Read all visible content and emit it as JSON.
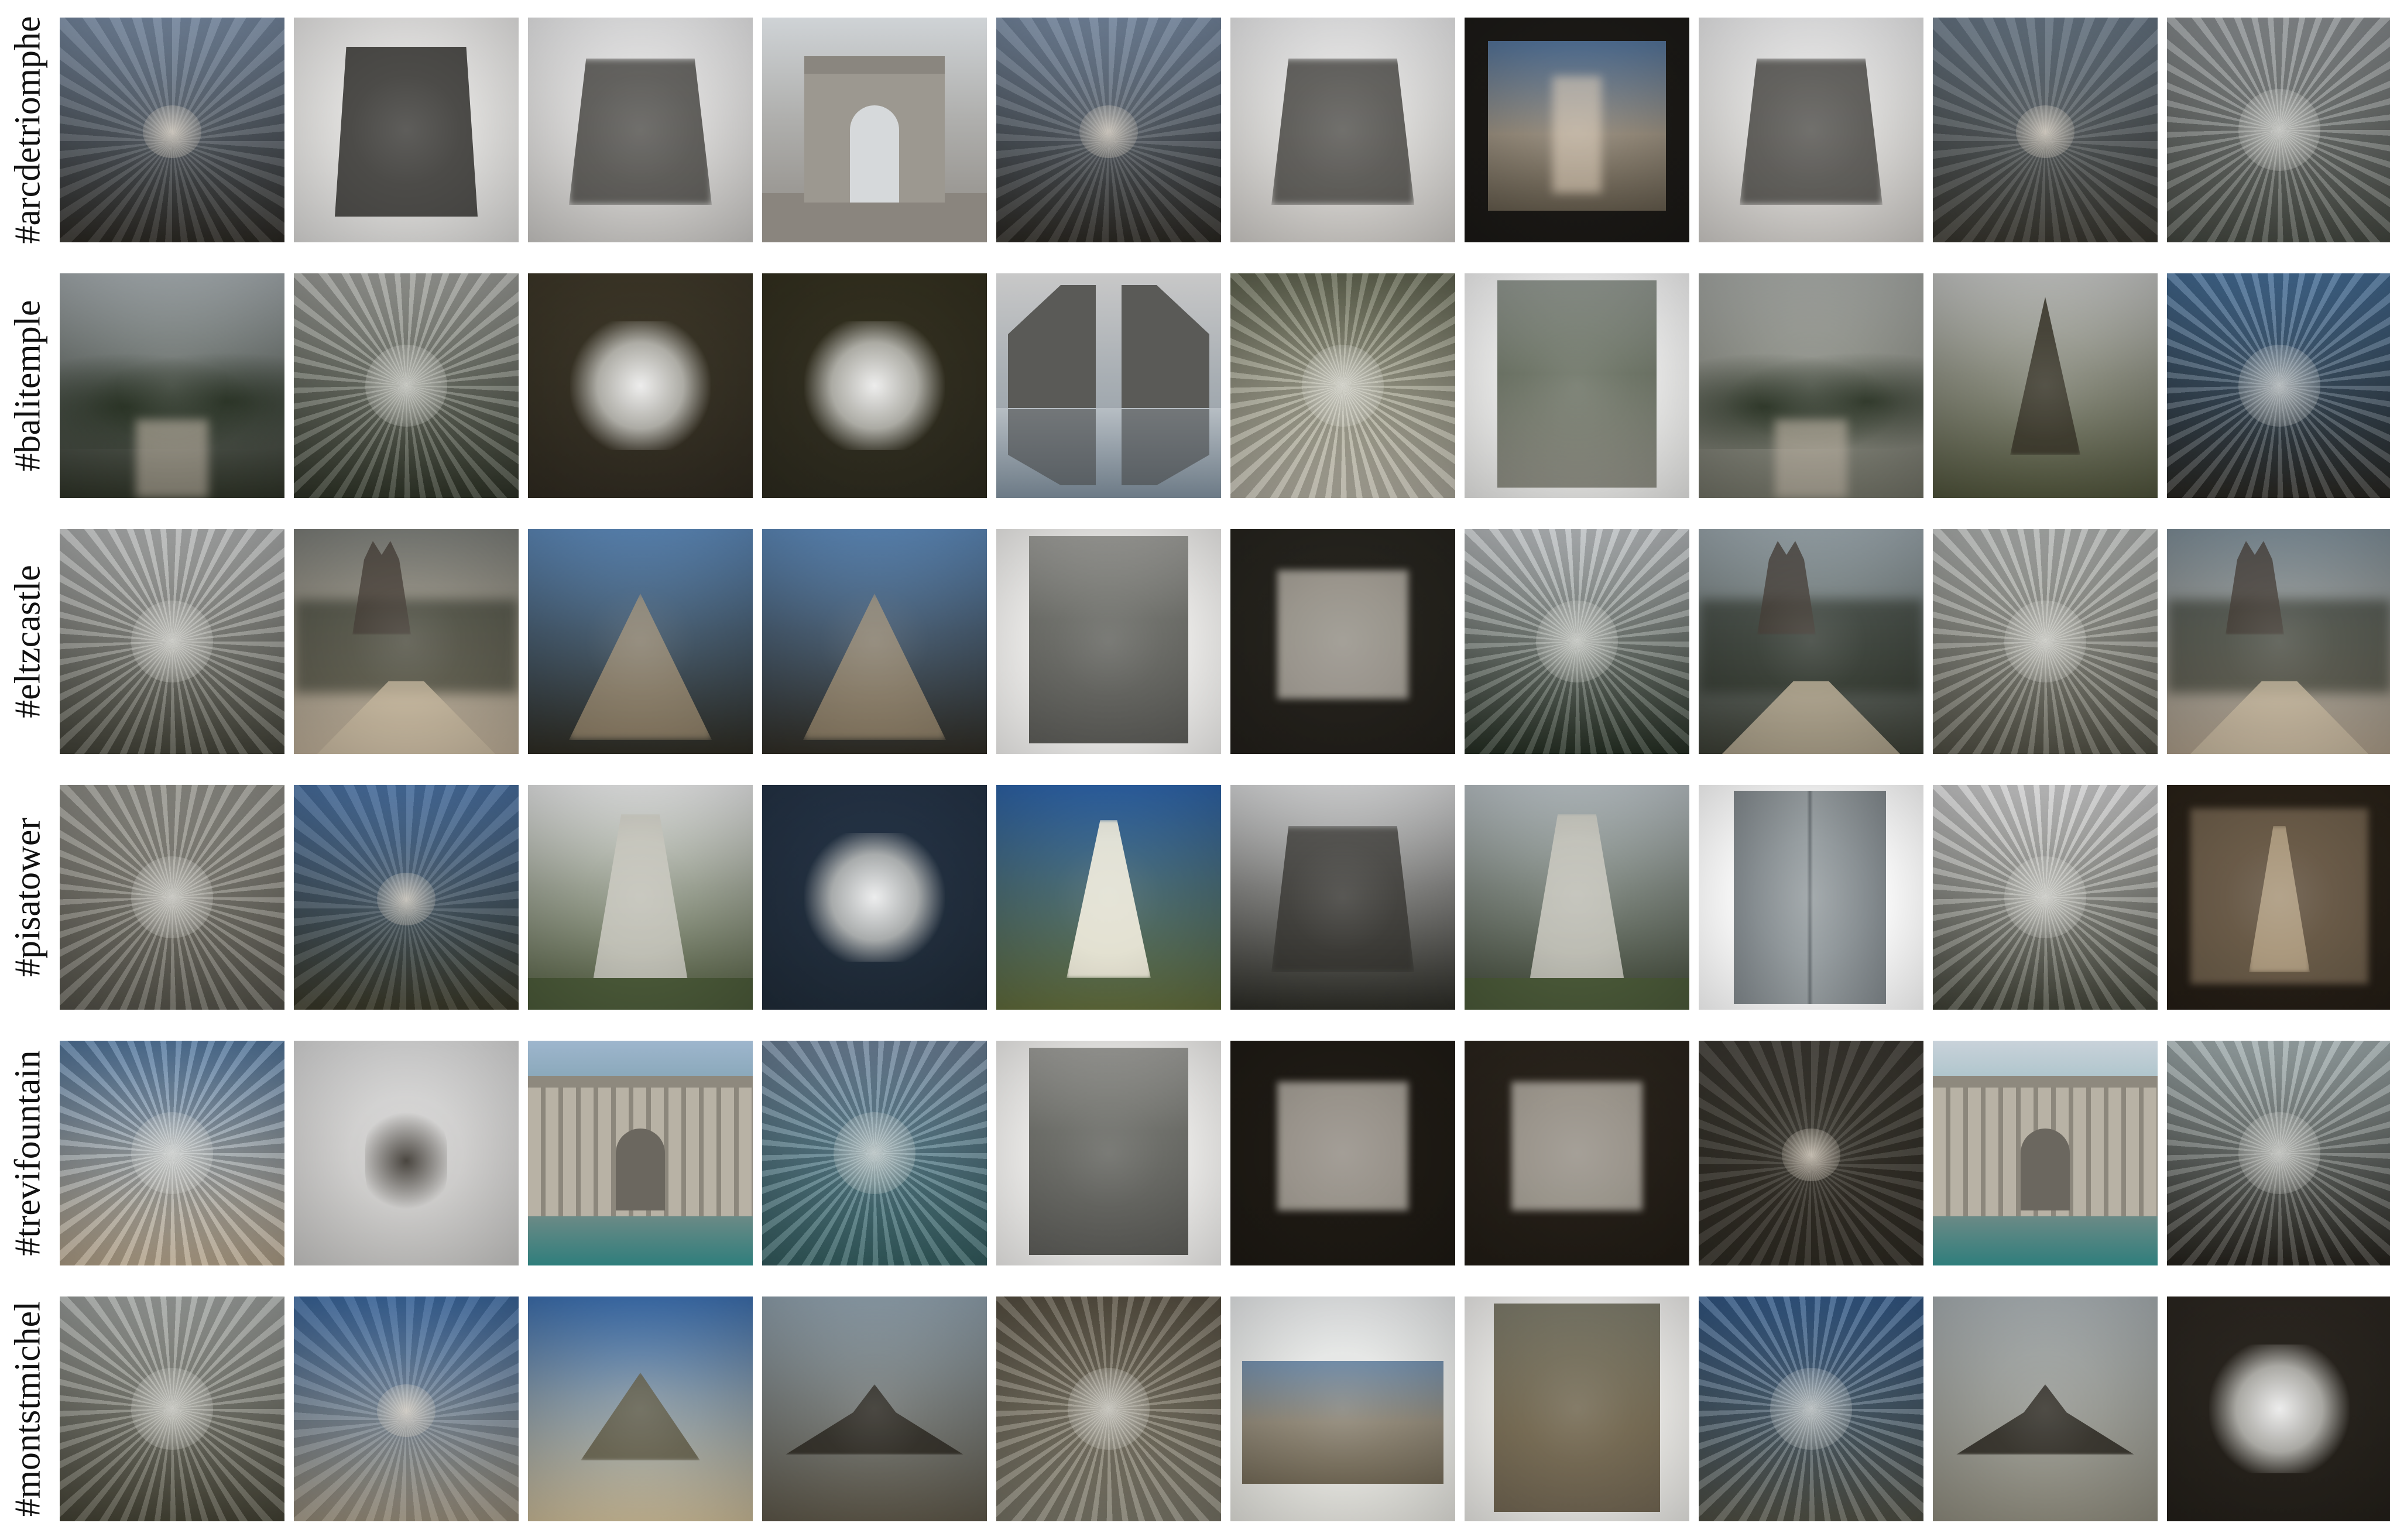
{
  "rows": [
    {
      "label": "#arcdetriomphe",
      "tiles": [
        {
          "top": "#7f93ad",
          "bottom": "#2d2a24",
          "shape": "streak"
        },
        {
          "top": "#e8e7e6",
          "bottom": "#d9d8d6",
          "shape": "trapezoid"
        },
        {
          "top": "#e9e9ea",
          "bottom": "#c8c6c3",
          "shape": "dark-block"
        },
        {
          "top": "#cfd3d6",
          "bottom": "#8e8a84",
          "shape": "arch"
        },
        {
          "top": "#7f93ad",
          "bottom": "#2d2a24",
          "shape": "streak"
        },
        {
          "top": "#ebebec",
          "bottom": "#cdcac6",
          "shape": "dark-block"
        },
        {
          "top": "#1c1a17",
          "bottom": "#1a1815",
          "shape": "framed"
        },
        {
          "top": "#ebebec",
          "bottom": "#cdcac6",
          "shape": "dark-block"
        },
        {
          "top": "#6f7f8f",
          "bottom": "#3a3830",
          "shape": "streak"
        },
        {
          "top": "#9ea3a6",
          "bottom": "#4d5149",
          "shape": "burst"
        }
      ]
    },
    {
      "label": "#balitemple",
      "tiles": [
        {
          "top": "#a3aaad",
          "bottom": "#2d3226",
          "shape": "trees"
        },
        {
          "top": "#b4b5b0",
          "bottom": "#343a2c",
          "shape": "burst"
        },
        {
          "top": "#3d3728",
          "bottom": "#2f2a20",
          "shape": "bright-center"
        },
        {
          "top": "#33301f",
          "bottom": "#2c2a1e",
          "shape": "bright-center"
        },
        {
          "top": "#c8c8c8",
          "bottom": "#8a96a0",
          "shape": "gate"
        },
        {
          "top": "#6f735c",
          "bottom": "#c7c3b4",
          "shape": "burst"
        },
        {
          "top": "#f4f4f4",
          "bottom": "#e6e6e4",
          "shape": "paper"
        },
        {
          "top": "#a5a8a4",
          "bottom": "#6e6f63",
          "shape": "trees"
        },
        {
          "top": "#c2c3c1",
          "bottom": "#4d5139",
          "shape": "tree-cone"
        },
        {
          "top": "#4d7aa8",
          "bottom": "#2d2b25",
          "shape": "burst"
        }
      ]
    },
    {
      "label": "#eltzcastle",
      "tiles": [
        {
          "top": "#c9cbcb",
          "bottom": "#4a4a3e",
          "shape": "burst"
        },
        {
          "top": "#7b7d78",
          "bottom": "#b9aa94",
          "shape": "castle-road"
        },
        {
          "top": "#5c88b8",
          "bottom": "#2d2b22",
          "shape": "mound"
        },
        {
          "top": "#5c88b8",
          "bottom": "#2f2c24",
          "shape": "mound"
        },
        {
          "top": "#f0efed",
          "bottom": "#f2f1ef",
          "shape": "gray-card"
        },
        {
          "top": "#26241e",
          "bottom": "#221f1a",
          "shape": "framed-light"
        },
        {
          "top": "#d5d9dc",
          "bottom": "#2a3528",
          "shape": "burst"
        },
        {
          "top": "#9aa6ac",
          "bottom": "#3a3d33",
          "shape": "castle-road"
        },
        {
          "top": "#c8cbc9",
          "bottom": "#5b5a4d",
          "shape": "burst"
        },
        {
          "top": "#7e8e98",
          "bottom": "#a99a86",
          "shape": "castle-road"
        }
      ]
    },
    {
      "label": "#pisatower",
      "tiles": [
        {
          "top": "#a5a49c",
          "bottom": "#5e5c52",
          "shape": "burst"
        },
        {
          "top": "#4f79ae",
          "bottom": "#3c3b2a",
          "shape": "streak"
        },
        {
          "top": "#e5e6e6",
          "bottom": "#4f5a3d",
          "shape": "tower"
        },
        {
          "top": "#243346",
          "bottom": "#1f2b38",
          "shape": "bright-center"
        },
        {
          "top": "#2d63a8",
          "bottom": "#5f6a3a",
          "shape": "tower-white"
        },
        {
          "top": "#d8d9da",
          "bottom": "#2b2b25",
          "shape": "dark-block"
        },
        {
          "top": "#b8c0c4",
          "bottom": "#3f4736",
          "shape": "tower"
        },
        {
          "top": "#ffffff",
          "bottom": "#ffffff",
          "shape": "plate"
        },
        {
          "top": "#e9e9ea",
          "bottom": "#4a4c3f",
          "shape": "burst"
        },
        {
          "top": "#2a2218",
          "bottom": "#241d15",
          "shape": "framed-tower"
        }
      ]
    },
    {
      "label": "#trevifountain",
      "tiles": [
        {
          "top": "#5f88b4",
          "bottom": "#c9b69a",
          "shape": "burst"
        },
        {
          "top": "#d8d8d8",
          "bottom": "#c7c6c4",
          "shape": "dark-spot"
        },
        {
          "top": "#9eb6cd",
          "bottom": "#2f6a66",
          "shape": "fountain"
        },
        {
          "top": "#7c93ad",
          "bottom": "#3b6a6c",
          "shape": "burst"
        },
        {
          "top": "#f1f0ee",
          "bottom": "#efeeec",
          "shape": "gray-card"
        },
        {
          "top": "#1f1b15",
          "bottom": "#1d1913",
          "shape": "framed-light"
        },
        {
          "top": "#2a241c",
          "bottom": "#211c15",
          "shape": "framed-light"
        },
        {
          "top": "#3d3a33",
          "bottom": "#2f2b23",
          "shape": "streak"
        },
        {
          "top": "#c9d2da",
          "bottom": "#3b8c8d",
          "shape": "fountain"
        },
        {
          "top": "#b8c6c8",
          "bottom": "#2a2720",
          "shape": "burst"
        }
      ]
    },
    {
      "label": "#montstmichel",
      "tiles": [
        {
          "top": "#b4b8b5",
          "bottom": "#4e4c3c",
          "shape": "burst"
        },
        {
          "top": "#3f6ea8",
          "bottom": "#9f9480",
          "shape": "streak"
        },
        {
          "top": "#3c6faf",
          "bottom": "#c8b895",
          "shape": "pyramid"
        },
        {
          "top": "#8fa0ac",
          "bottom": "#5c5648",
          "shape": "mount"
        },
        {
          "top": "#645c4c",
          "bottom": "#8a8676",
          "shape": "burst"
        },
        {
          "top": "#e7e9ea",
          "bottom": "#e3e2dc",
          "shape": "framed-photo"
        },
        {
          "top": "#efeeec",
          "bottom": "#e9e8e4",
          "shape": "paper-brown"
        },
        {
          "top": "#3a6599",
          "bottom": "#5a5a4d",
          "shape": "burst"
        },
        {
          "top": "#a7aeb1",
          "bottom": "#8d8a7c",
          "shape": "mount"
        },
        {
          "top": "#2b2620",
          "bottom": "#231f19",
          "shape": "bright-center"
        }
      ]
    }
  ]
}
